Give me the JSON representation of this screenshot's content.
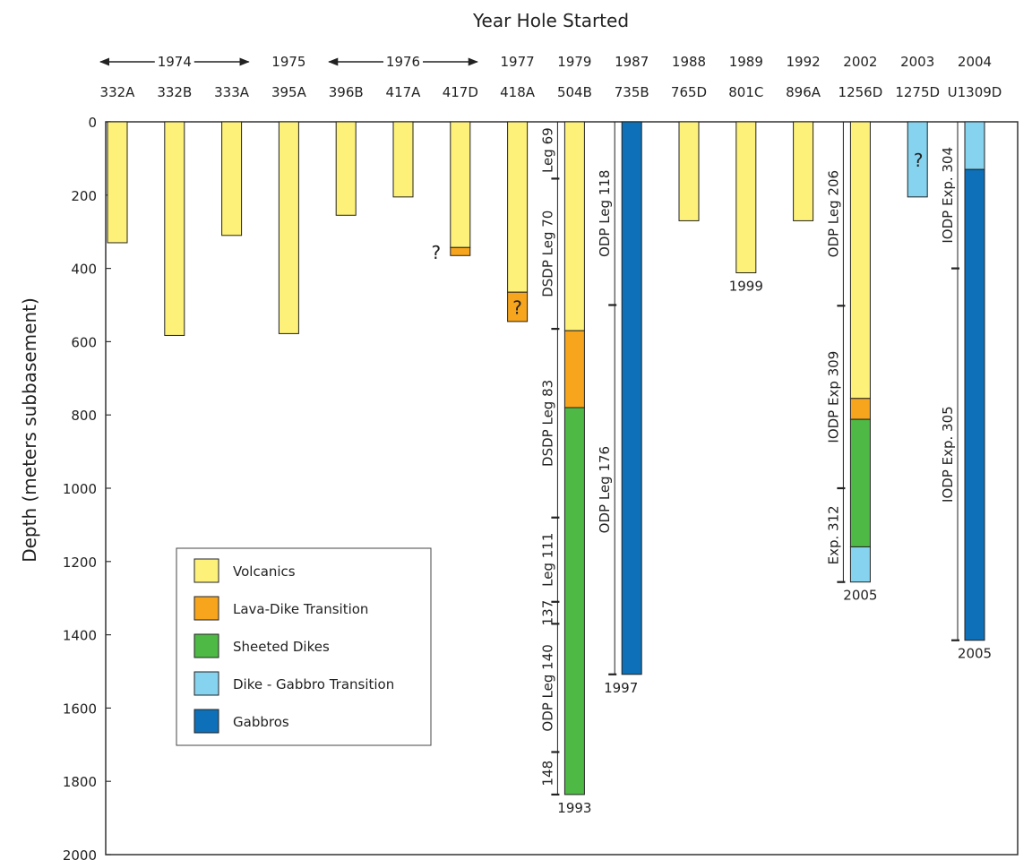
{
  "chart_data": {
    "type": "bar",
    "title": "Year Hole Started",
    "ylabel": "Depth (meters subbasement)",
    "ylim": [
      0,
      2000
    ],
    "y_inverted": true,
    "yticks": [
      0,
      200,
      400,
      600,
      800,
      1000,
      1200,
      1400,
      1600,
      1800,
      2000
    ],
    "grid": false,
    "legend_position": "bottom-left",
    "legend": [
      {
        "key": "volcanics",
        "label": "Volcanics",
        "color": "#fef17a"
      },
      {
        "key": "lava_dike",
        "label": "Lava-Dike Transition",
        "color": "#f6a51d"
      },
      {
        "key": "sheeted",
        "label": "Sheeted Dikes",
        "color": "#4fb946"
      },
      {
        "key": "dike_gabbro",
        "label": "Dike - Gabbro Transition",
        "color": "#85d3ef"
      },
      {
        "key": "gabbros",
        "label": "Gabbros",
        "color": "#0d70b8"
      }
    ],
    "year_labels": [
      {
        "text": "1974",
        "from": 0,
        "to": 2
      },
      {
        "text": "1975",
        "from": 3,
        "to": 3
      },
      {
        "text": "1976",
        "from": 4,
        "to": 6
      },
      {
        "text": "1977",
        "from": 7,
        "to": 7
      },
      {
        "text": "1979",
        "from": 8,
        "to": 8
      },
      {
        "text": "1987",
        "from": 9,
        "to": 9
      },
      {
        "text": "1988",
        "from": 10,
        "to": 10
      },
      {
        "text": "1989",
        "from": 11,
        "to": 11
      },
      {
        "text": "1992",
        "from": 12,
        "to": 12
      },
      {
        "text": "2002",
        "from": 13,
        "to": 13
      },
      {
        "text": "2003",
        "from": 14,
        "to": 14
      },
      {
        "text": "2004",
        "from": 15,
        "to": 15
      }
    ],
    "holes": [
      {
        "name": "332A",
        "segments": [
          {
            "from": 0,
            "to": 330,
            "type": "volcanics"
          }
        ]
      },
      {
        "name": "332B",
        "segments": [
          {
            "from": 0,
            "to": 583,
            "type": "volcanics"
          }
        ]
      },
      {
        "name": "333A",
        "segments": [
          {
            "from": 0,
            "to": 310,
            "type": "volcanics"
          }
        ]
      },
      {
        "name": "395A",
        "segments": [
          {
            "from": 0,
            "to": 578,
            "type": "volcanics"
          }
        ]
      },
      {
        "name": "396B",
        "segments": [
          {
            "from": 0,
            "to": 255,
            "type": "volcanics"
          }
        ]
      },
      {
        "name": "417A",
        "segments": [
          {
            "from": 0,
            "to": 205,
            "type": "volcanics"
          }
        ]
      },
      {
        "name": "417D",
        "segments": [
          {
            "from": 0,
            "to": 343,
            "type": "volcanics"
          },
          {
            "from": 343,
            "to": 365,
            "type": "lava_dike"
          }
        ]
      },
      {
        "name": "418A",
        "segments": [
          {
            "from": 0,
            "to": 465,
            "type": "volcanics"
          },
          {
            "from": 465,
            "to": 545,
            "type": "lava_dike"
          }
        ]
      },
      {
        "name": "504B",
        "segments": [
          {
            "from": 0,
            "to": 570,
            "type": "volcanics"
          },
          {
            "from": 570,
            "to": 780,
            "type": "lava_dike"
          },
          {
            "from": 780,
            "to": 1836,
            "type": "sheeted"
          }
        ]
      },
      {
        "name": "735B",
        "segments": [
          {
            "from": 0,
            "to": 1508,
            "type": "gabbros"
          }
        ]
      },
      {
        "name": "765D",
        "segments": [
          {
            "from": 0,
            "to": 270,
            "type": "volcanics"
          }
        ]
      },
      {
        "name": "801C",
        "segments": [
          {
            "from": 0,
            "to": 412,
            "type": "volcanics"
          }
        ]
      },
      {
        "name": "896A",
        "segments": [
          {
            "from": 0,
            "to": 270,
            "type": "volcanics"
          }
        ]
      },
      {
        "name": "1256D",
        "segments": [
          {
            "from": 0,
            "to": 755,
            "type": "volcanics"
          },
          {
            "from": 755,
            "to": 812,
            "type": "lava_dike"
          },
          {
            "from": 812,
            "to": 1160,
            "type": "sheeted"
          },
          {
            "from": 1160,
            "to": 1256,
            "type": "dike_gabbro"
          }
        ]
      },
      {
        "name": "1275D",
        "segments": [
          {
            "from": 0,
            "to": 205,
            "type": "dike_gabbro"
          }
        ]
      },
      {
        "name": "U1309D",
        "segments": [
          {
            "from": 0,
            "to": 130,
            "type": "dike_gabbro"
          },
          {
            "from": 130,
            "to": 1415,
            "type": "gabbros"
          }
        ]
      }
    ],
    "question_marks": [
      {
        "hole": "417D",
        "depth": 345,
        "boxed": false
      },
      {
        "hole": "418A",
        "depth": 505,
        "boxed": true
      },
      {
        "hole": "1275D",
        "depth": 100,
        "boxed": false
      }
    ],
    "year_end_labels": [
      {
        "hole": "504B",
        "text": "1993"
      },
      {
        "hole": "735B",
        "text": "1997"
      },
      {
        "hole": "801C",
        "text": "1999"
      },
      {
        "hole": "1256D",
        "text": "2005"
      },
      {
        "hole": "U1309D",
        "text": "2005"
      }
    ],
    "expeditions": [
      {
        "hole": "504B",
        "text": "Leg 69",
        "from": 0,
        "to": 155
      },
      {
        "hole": "504B",
        "text": "DSDP Leg 70",
        "from": 155,
        "to": 565
      },
      {
        "hole": "504B",
        "text": "DSDP Leg 83",
        "from": 565,
        "to": 1080
      },
      {
        "hole": "504B",
        "text": "Leg 111",
        "from": 1080,
        "to": 1310
      },
      {
        "hole": "504B",
        "text": "137",
        "from": 1310,
        "to": 1370
      },
      {
        "hole": "504B",
        "text": "ODP Leg 140",
        "from": 1370,
        "to": 1720
      },
      {
        "hole": "504B",
        "text": "148",
        "from": 1720,
        "to": 1836
      },
      {
        "hole": "735B",
        "text": "ODP Leg 118",
        "from": 0,
        "to": 500
      },
      {
        "hole": "735B",
        "text": "ODP Leg 176",
        "from": 500,
        "to": 1508
      },
      {
        "hole": "1256D",
        "text": "ODP Leg 206",
        "from": 0,
        "to": 502
      },
      {
        "hole": "1256D",
        "text": "IODP Exp 309",
        "from": 502,
        "to": 1000
      },
      {
        "hole": "1256D",
        "text": "Exp. 312",
        "from": 1000,
        "to": 1256
      },
      {
        "hole": "U1309D",
        "text": "IODP Exp. 304",
        "from": 0,
        "to": 400
      },
      {
        "hole": "U1309D",
        "text": "IODP Exp. 305",
        "from": 400,
        "to": 1415
      }
    ]
  }
}
